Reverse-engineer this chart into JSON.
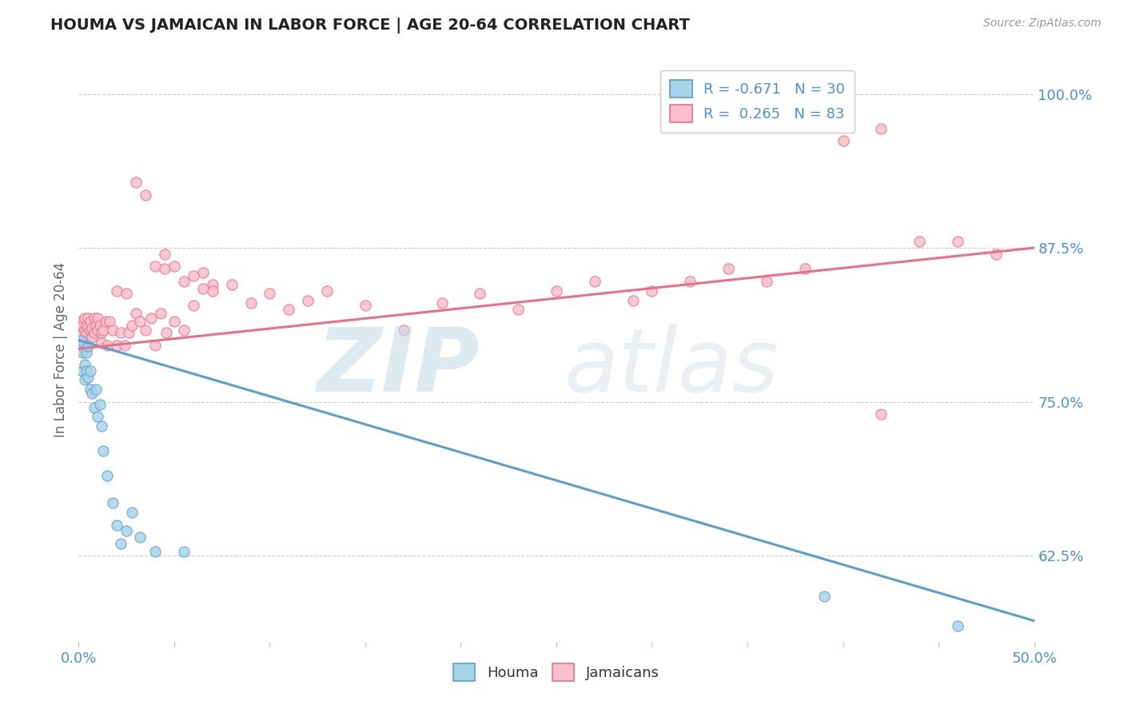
{
  "title": "HOUMA VS JAMAICAN IN LABOR FORCE | AGE 20-64 CORRELATION CHART",
  "source": "Source: ZipAtlas.com",
  "ylabel_label": "In Labor Force | Age 20-64",
  "right_ytick_labels": [
    "62.5%",
    "75.0%",
    "87.5%",
    "100.0%"
  ],
  "right_ytick_vals": [
    0.625,
    0.75,
    0.875,
    1.0
  ],
  "xlim": [
    0.0,
    0.5
  ],
  "ylim": [
    0.555,
    1.03
  ],
  "houma_R": -0.671,
  "houma_N": 30,
  "jamaican_R": 0.265,
  "jamaican_N": 83,
  "houma_color": "#a8d4ea",
  "jamaican_color": "#f9bfcc",
  "houma_edge_color": "#5b9ec9",
  "jamaican_edge_color": "#e8708a",
  "houma_line_color": "#5b9ec9",
  "jamaican_line_color": "#e8708a",
  "legend_text_color": "#4a90d9",
  "background_color": "#ffffff",
  "grid_color": "#cccccc",
  "houma_line_x": [
    0.0,
    0.5
  ],
  "houma_line_y": [
    0.8,
    0.572
  ],
  "jamaican_line_x": [
    0.0,
    0.5
  ],
  "jamaican_line_y": [
    0.793,
    0.875
  ],
  "houma_x": [
    0.001,
    0.001,
    0.002,
    0.002,
    0.003,
    0.003,
    0.004,
    0.004,
    0.005,
    0.005,
    0.006,
    0.006,
    0.007,
    0.008,
    0.009,
    0.01,
    0.011,
    0.012,
    0.013,
    0.015,
    0.018,
    0.02,
    0.022,
    0.025,
    0.028,
    0.032,
    0.04,
    0.055,
    0.39,
    0.46
  ],
  "houma_y": [
    0.795,
    0.8,
    0.775,
    0.79,
    0.78,
    0.768,
    0.775,
    0.79,
    0.795,
    0.77,
    0.76,
    0.775,
    0.757,
    0.745,
    0.76,
    0.738,
    0.748,
    0.73,
    0.71,
    0.69,
    0.668,
    0.65,
    0.635,
    0.645,
    0.66,
    0.64,
    0.628,
    0.628,
    0.592,
    0.568
  ],
  "jamaican_x": [
    0.001,
    0.001,
    0.001,
    0.002,
    0.002,
    0.003,
    0.003,
    0.004,
    0.004,
    0.005,
    0.005,
    0.005,
    0.006,
    0.006,
    0.007,
    0.007,
    0.008,
    0.008,
    0.009,
    0.01,
    0.01,
    0.011,
    0.012,
    0.012,
    0.013,
    0.014,
    0.015,
    0.016,
    0.018,
    0.02,
    0.022,
    0.024,
    0.026,
    0.028,
    0.03,
    0.032,
    0.035,
    0.038,
    0.04,
    0.043,
    0.046,
    0.05,
    0.055,
    0.06,
    0.065,
    0.07,
    0.08,
    0.09,
    0.1,
    0.11,
    0.12,
    0.13,
    0.15,
    0.17,
    0.19,
    0.21,
    0.23,
    0.25,
    0.27,
    0.29,
    0.3,
    0.32,
    0.34,
    0.36,
    0.38,
    0.4,
    0.42,
    0.44,
    0.46,
    0.48,
    0.02,
    0.025,
    0.03,
    0.035,
    0.04,
    0.045,
    0.045,
    0.05,
    0.055,
    0.06,
    0.065,
    0.07,
    0.42
  ],
  "jamaican_y": [
    0.8,
    0.81,
    0.815,
    0.805,
    0.812,
    0.808,
    0.818,
    0.812,
    0.805,
    0.81,
    0.8,
    0.818,
    0.808,
    0.815,
    0.81,
    0.802,
    0.818,
    0.806,
    0.812,
    0.818,
    0.808,
    0.812,
    0.806,
    0.798,
    0.808,
    0.815,
    0.796,
    0.815,
    0.808,
    0.796,
    0.806,
    0.796,
    0.806,
    0.812,
    0.822,
    0.815,
    0.808,
    0.818,
    0.796,
    0.822,
    0.806,
    0.815,
    0.808,
    0.828,
    0.855,
    0.845,
    0.845,
    0.83,
    0.838,
    0.825,
    0.832,
    0.84,
    0.828,
    0.808,
    0.83,
    0.838,
    0.825,
    0.84,
    0.848,
    0.832,
    0.84,
    0.848,
    0.858,
    0.848,
    0.858,
    0.962,
    0.972,
    0.88,
    0.88,
    0.87,
    0.84,
    0.838,
    0.928,
    0.918,
    0.86,
    0.858,
    0.87,
    0.86,
    0.848,
    0.852,
    0.842,
    0.84,
    0.74
  ]
}
